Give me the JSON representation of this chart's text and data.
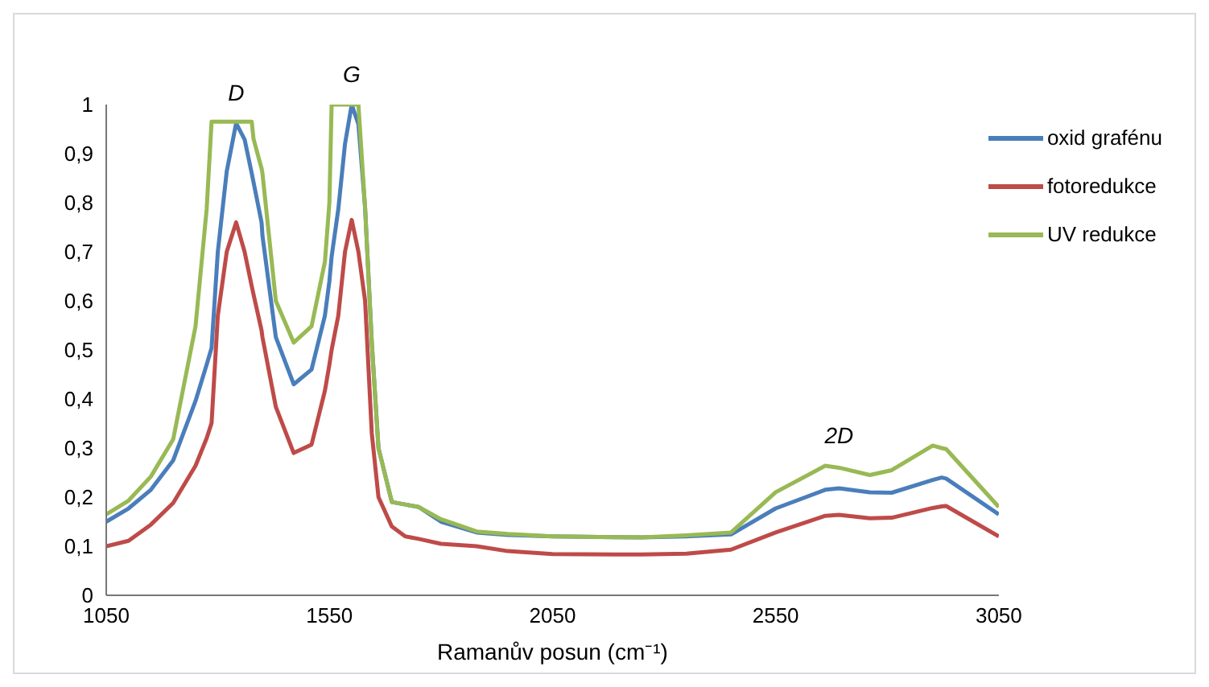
{
  "chart_data": {
    "type": "line",
    "xlabel": "Ramanův posun (cm⁻¹)",
    "x": [
      1050,
      1100,
      1150,
      1200,
      1250,
      1275,
      1286,
      1300,
      1320,
      1341,
      1360,
      1376,
      1380,
      1398,
      1400,
      1430,
      1470,
      1510,
      1540,
      1550,
      1555,
      1570,
      1585,
      1600,
      1615,
      1630,
      1645,
      1660,
      1690,
      1720,
      1750,
      1800,
      1880,
      1950,
      2050,
      2250,
      2350,
      2450,
      2550,
      2661,
      2692,
      2761,
      2810,
      2902,
      2922,
      2932,
      3050
    ],
    "series": [
      {
        "name": "oxid grafénu",
        "color": "#4a7ebb",
        "values": [
          0.15,
          0.177,
          0.215,
          0.275,
          0.396,
          0.47,
          0.504,
          0.7,
          0.864,
          0.962,
          0.929,
          0.86,
          0.842,
          0.76,
          0.733,
          0.526,
          0.43,
          0.46,
          0.57,
          0.64,
          0.69,
          0.787,
          0.92,
          1.0,
          0.96,
          0.79,
          0.515,
          0.3,
          0.19,
          0.185,
          0.18,
          0.15,
          0.128,
          0.123,
          0.12,
          0.118,
          0.12,
          0.124,
          0.177,
          0.215,
          0.218,
          0.21,
          0.209,
          0.235,
          0.24,
          0.238,
          0.165
        ]
      },
      {
        "name": "fotoredukce",
        "color": "#be4b48",
        "values": [
          0.1,
          0.111,
          0.144,
          0.188,
          0.264,
          0.32,
          0.351,
          0.57,
          0.7,
          0.76,
          0.7,
          0.63,
          0.613,
          0.54,
          0.526,
          0.384,
          0.29,
          0.307,
          0.417,
          0.47,
          0.5,
          0.57,
          0.7,
          0.765,
          0.7,
          0.6,
          0.33,
          0.2,
          0.14,
          0.12,
          0.115,
          0.105,
          0.1,
          0.09,
          0.084,
          0.083,
          0.085,
          0.093,
          0.128,
          0.162,
          0.164,
          0.157,
          0.158,
          0.178,
          0.181,
          0.182,
          0.12
        ]
      },
      {
        "name": "UV  redukce",
        "color": "#98b954",
        "values": [
          0.165,
          0.193,
          0.242,
          0.318,
          0.548,
          0.787,
          0.965,
          0.965,
          0.965,
          0.965,
          0.965,
          0.965,
          0.93,
          0.87,
          0.86,
          0.6,
          0.515,
          0.548,
          0.68,
          0.8,
          1.0,
          1.0,
          1.0,
          1.0,
          1.0,
          0.79,
          0.515,
          0.3,
          0.19,
          0.185,
          0.18,
          0.155,
          0.13,
          0.125,
          0.12,
          0.118,
          0.122,
          0.128,
          0.21,
          0.264,
          0.26,
          0.245,
          0.255,
          0.305,
          0.3,
          0.298,
          0.18
        ]
      }
    ],
    "xlim": [
      1050,
      3050
    ],
    "xticks": [
      1050,
      1550,
      2050,
      2550,
      3050
    ],
    "ylim": [
      0,
      1
    ],
    "yticks": [
      0,
      {
        "value": 0.1,
        "label": "0,1"
      },
      {
        "value": 0.2,
        "label": "0,2"
      },
      {
        "value": 0.3,
        "label": "0,3"
      },
      {
        "value": 0.4,
        "label": "0,4"
      },
      {
        "value": 0.5,
        "label": "0,5"
      },
      {
        "value": 0.6,
        "label": "0,6"
      },
      {
        "value": 0.7,
        "label": "0,7"
      },
      {
        "value": 0.8,
        "label": "0,8"
      },
      {
        "value": 0.9,
        "label": "0,9"
      },
      1
    ],
    "annotations": [
      {
        "text": "D",
        "x": 1341,
        "y": 0.962
      },
      {
        "text": "G",
        "x": 1600,
        "y": 1.0
      },
      {
        "text": "2D",
        "x": 2692,
        "y": 0.264
      }
    ],
    "grid": false,
    "legend": "top right",
    "marker": "none",
    "line_style": "solid"
  }
}
